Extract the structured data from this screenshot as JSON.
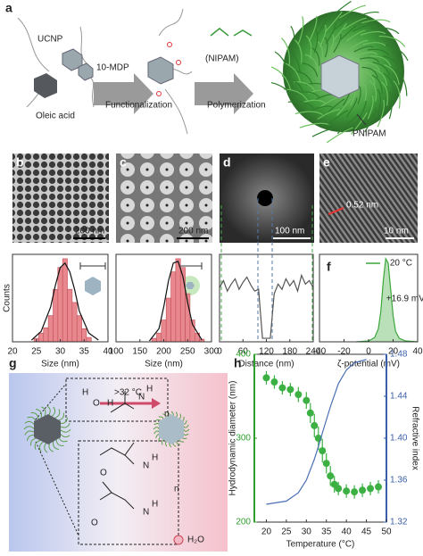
{
  "figure": {
    "a": {
      "label": "a",
      "ucnp": "UCNP",
      "mdp": "10-MDP",
      "nipam": "(NIPAM)",
      "func": "Functionalization",
      "poly": "Polymerization",
      "oleic": "Oleic acid",
      "pnipam": "PNIPAM"
    },
    "micrographs": [
      {
        "label": "b",
        "scale": "200 nm"
      },
      {
        "label": "c",
        "scale": "200 nm"
      },
      {
        "label": "d",
        "scale": "100 nm"
      },
      {
        "label": "e",
        "scale": "10 nm",
        "annotation": "0.52 nm"
      }
    ],
    "f_label": "f",
    "g": {
      "label": "g",
      "condition": ">32 °C",
      "water": "H₂O",
      "chem": [
        "H",
        "O",
        "H",
        "N",
        "H",
        "n",
        "N",
        "H",
        "O",
        "N",
        "H",
        "O",
        "n"
      ]
    },
    "h_label": "h"
  },
  "chart_data": [
    {
      "type": "histogram",
      "xlabel": "Size (nm)",
      "ylabel": "Counts",
      "xlim": [
        20,
        40
      ],
      "ylim": [
        0,
        100
      ],
      "xticks": [
        20,
        25,
        30,
        35,
        40
      ],
      "bins": [
        24.5,
        25.5,
        26.5,
        27.5,
        28.5,
        29.5,
        30.5,
        31.5,
        32.5,
        33.5,
        34.5,
        35.5,
        36.5
      ],
      "values": [
        4,
        10,
        16,
        30,
        60,
        85,
        95,
        60,
        45,
        30,
        15,
        5
      ],
      "color": "#e8888e",
      "line": {
        "x": [
          24,
          26,
          28,
          29,
          30,
          31,
          32,
          33,
          34,
          36,
          38
        ],
        "y": [
          2,
          12,
          40,
          65,
          85,
          90,
          80,
          60,
          35,
          10,
          2
        ],
        "color": "#111"
      }
    },
    {
      "type": "histogram",
      "xlabel": "Size (nm)",
      "xlim": [
        100,
        300
      ],
      "ylim": [
        0,
        100
      ],
      "xticks": [
        100,
        150,
        200,
        250,
        300
      ],
      "bins": [
        175,
        185,
        195,
        205,
        215,
        225,
        235,
        245,
        255,
        265,
        275,
        285
      ],
      "values": [
        4,
        10,
        25,
        50,
        80,
        95,
        85,
        55,
        25,
        10,
        3
      ],
      "color": "#e8888e",
      "line": {
        "x": [
          170,
          190,
          200,
          210,
          220,
          230,
          240,
          250,
          260,
          280
        ],
        "y": [
          1,
          15,
          40,
          70,
          90,
          92,
          75,
          45,
          20,
          2
        ],
        "color": "#111"
      }
    },
    {
      "type": "line",
      "xlabel": "Distance (nm)",
      "xlim": [
        0,
        240
      ],
      "ylim": [
        0,
        100
      ],
      "xticks": [
        0,
        60,
        120,
        180,
        240
      ],
      "x": [
        0,
        10,
        20,
        30,
        40,
        50,
        60,
        70,
        80,
        90,
        100,
        110,
        120,
        130,
        140,
        150,
        160,
        170,
        180,
        190,
        200,
        210,
        220,
        230,
        240
      ],
      "series": [
        {
          "color": "#555",
          "values": [
            62,
            70,
            58,
            66,
            72,
            60,
            68,
            74,
            65,
            58,
            60,
            4,
            4,
            4,
            55,
            66,
            60,
            72,
            64,
            70,
            58,
            76,
            66,
            70,
            62
          ]
        }
      ]
    },
    {
      "type": "line",
      "xlabel": "ζ-potential (mV)",
      "xlim": [
        -40,
        40
      ],
      "ylim": [
        0,
        100
      ],
      "xticks": [
        -40,
        -20,
        0,
        20,
        40
      ],
      "fill": true,
      "legend": "upper right",
      "annotation": "+16.9 mV",
      "x": [
        -10,
        0,
        5,
        8,
        10,
        12,
        14,
        16,
        18,
        20,
        22,
        25,
        30,
        40
      ],
      "series": [
        {
          "name": "20 °C",
          "color": "#3aa63a",
          "values": [
            0,
            1,
            5,
            15,
            35,
            70,
            95,
            90,
            60,
            30,
            12,
            4,
            1,
            0
          ]
        }
      ]
    },
    {
      "type": "line",
      "xlabel": "Temperature (°C)",
      "ylabel": "Hydrodynamic diameter (nm)",
      "y2label": "Refractive index",
      "xlim": [
        17,
        50
      ],
      "ylim": [
        200,
        400
      ],
      "y2lim": [
        1.32,
        1.48
      ],
      "xticks": [
        20,
        25,
        30,
        35,
        40,
        45,
        50
      ],
      "yticks": [
        200,
        300,
        400
      ],
      "y2ticks": [
        1.32,
        1.36,
        {
          "value": 1.4,
          "label": "1.40"
        },
        1.44,
        1.48
      ],
      "ycolor": "#2e9e2e",
      "y2color": "#3b5ea8",
      "series": [
        {
          "color": "#3cb043",
          "marker": "circle",
          "x": [
            20,
            22,
            24,
            26,
            28,
            30,
            31,
            32,
            33,
            34,
            35,
            36,
            37,
            38,
            40,
            42,
            44,
            46,
            48
          ],
          "values": [
            372,
            367,
            360,
            358,
            352,
            345,
            330,
            315,
            300,
            285,
            270,
            255,
            245,
            240,
            237,
            236,
            238,
            240,
            242
          ],
          "errors": [
            8,
            8,
            8,
            8,
            9,
            10,
            12,
            14,
            14,
            14,
            12,
            12,
            10,
            8,
            8,
            8,
            8,
            8,
            8
          ]
        },
        {
          "color": "#4a6fb5",
          "axis": "y2",
          "x": [
            20,
            25,
            28,
            30,
            32,
            33,
            34,
            36,
            38,
            40,
            42,
            45
          ],
          "values": [
            1.337,
            1.34,
            1.348,
            1.36,
            1.38,
            1.392,
            1.405,
            1.43,
            1.452,
            1.465,
            1.472,
            1.475
          ]
        }
      ]
    }
  ]
}
